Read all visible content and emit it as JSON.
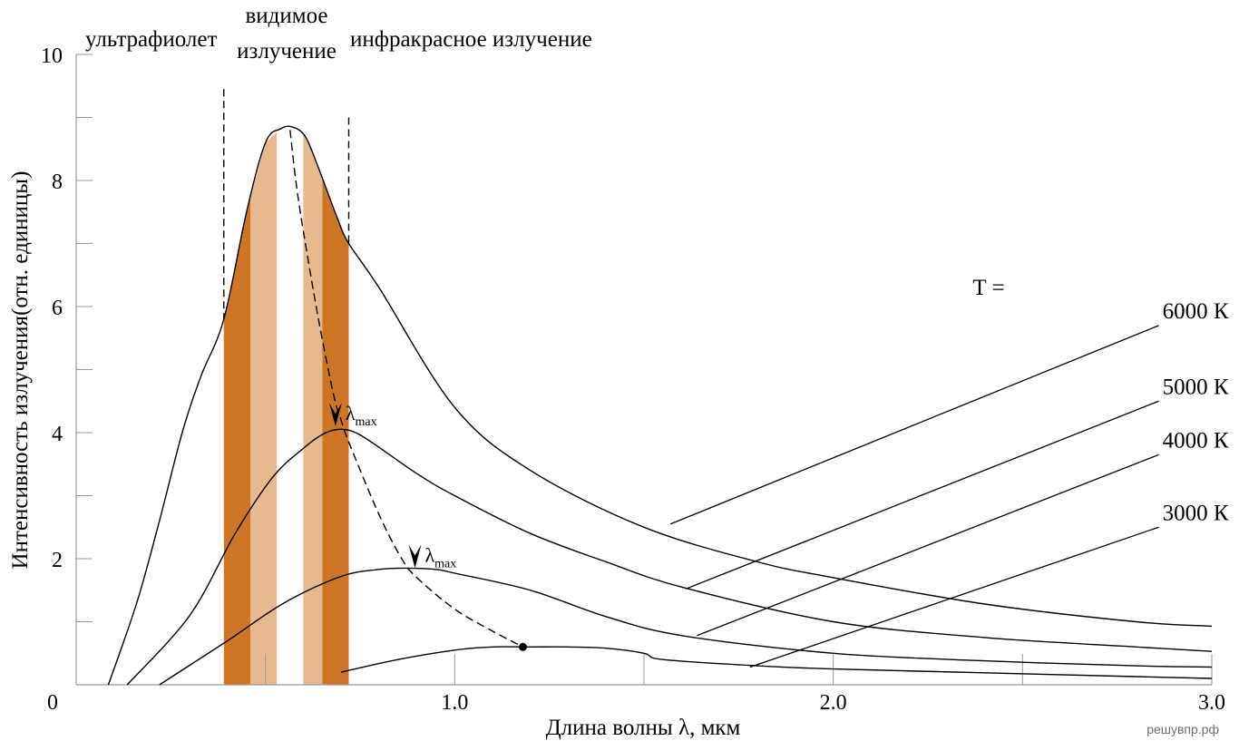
{
  "chart_data": {
    "type": "line",
    "title": "",
    "xlabel": "Длина волны λ, мкм",
    "ylabel": "Интенсивность излучения(отн. единицы)",
    "xlim": [
      0,
      3.0
    ],
    "ylim": [
      0,
      10
    ],
    "x_ticks": [
      "0",
      "1.0",
      "2.0",
      "3.0"
    ],
    "y_ticks": [
      "2",
      "4",
      "6",
      "8",
      "10"
    ],
    "grid": false,
    "regions": [
      {
        "label": "ультрафиолет",
        "from": 0.0,
        "to": 0.39
      },
      {
        "label_line1": "видимое",
        "label_line2": "излучение",
        "from": 0.39,
        "to": 0.72
      },
      {
        "label": "инфракрасное излучение",
        "from": 0.72,
        "to": 3.0
      }
    ],
    "visible_bands": [
      {
        "from": 0.39,
        "to": 0.46,
        "color": "#cd7726"
      },
      {
        "from": 0.46,
        "to": 0.53,
        "color": "#e6b98e"
      },
      {
        "from": 0.53,
        "to": 0.6,
        "color": "#ffffff"
      },
      {
        "from": 0.6,
        "to": 0.65,
        "color": "#e6b98e"
      },
      {
        "from": 0.65,
        "to": 0.72,
        "color": "#cd7726"
      }
    ],
    "legend_header": "T =",
    "series": [
      {
        "name": "6000 К",
        "x": [
          0.085,
          0.16,
          0.22,
          0.28,
          0.33,
          0.39,
          0.45,
          0.5,
          0.54,
          0.57,
          0.605,
          0.64,
          0.69,
          0.72,
          0.8,
          1.0,
          1.2,
          1.5,
          1.8,
          2.0,
          2.4,
          2.8,
          3.0
        ],
        "y": [
          0.0,
          1.3,
          2.6,
          4.0,
          4.9,
          5.8,
          7.5,
          8.6,
          8.82,
          8.85,
          8.7,
          8.2,
          7.4,
          7.0,
          6.3,
          4.4,
          3.4,
          2.5,
          1.95,
          1.7,
          1.28,
          1.0,
          0.93
        ]
      },
      {
        "name": "5000 К",
        "x": [
          0.135,
          0.3,
          0.42,
          0.52,
          0.6,
          0.65,
          0.69,
          0.73,
          0.78,
          0.9,
          1.0,
          1.2,
          1.4,
          1.6,
          2.0,
          2.4,
          2.8,
          3.0
        ],
        "y": [
          0.0,
          1.1,
          2.4,
          3.3,
          3.75,
          3.97,
          4.05,
          4.02,
          3.85,
          3.35,
          3.0,
          2.4,
          1.95,
          1.55,
          1.0,
          0.75,
          0.6,
          0.53
        ]
      },
      {
        "name": "4000 К",
        "x": [
          0.22,
          0.4,
          0.55,
          0.7,
          0.8,
          0.87,
          0.95,
          1.0,
          1.2,
          1.4,
          1.6,
          2.0,
          2.4,
          2.8,
          3.0
        ],
        "y": [
          0.0,
          0.7,
          1.3,
          1.72,
          1.83,
          1.85,
          1.83,
          1.77,
          1.5,
          1.08,
          0.78,
          0.5,
          0.38,
          0.3,
          0.28
        ]
      },
      {
        "name": "3000 К",
        "x": [
          0.7,
          0.85,
          1.0,
          1.1,
          1.2,
          1.3,
          1.4,
          1.5,
          1.55,
          1.8,
          2.0,
          2.4,
          2.8,
          3.0
        ],
        "y": [
          0.2,
          0.4,
          0.55,
          0.6,
          0.6,
          0.6,
          0.58,
          0.5,
          0.4,
          0.3,
          0.25,
          0.19,
          0.13,
          0.1
        ]
      }
    ],
    "wien_peak_curve": {
      "x": [
        0.565,
        0.58,
        0.6,
        0.64,
        0.68,
        0.7,
        0.72,
        0.8,
        0.86,
        0.9,
        1.0,
        1.1,
        1.18
      ],
      "y": [
        8.8,
        8.0,
        7.2,
        5.8,
        4.6,
        4.2,
        3.85,
        2.7,
        2.0,
        1.7,
        1.2,
        0.85,
        0.6
      ]
    },
    "peak_labels": [
      {
        "symbol": "λ",
        "subscript": "max",
        "x": 0.685,
        "y": 4.1
      },
      {
        "symbol": "λ",
        "subscript": "max",
        "x": 0.895,
        "y": 1.85
      }
    ],
    "endpoint_marker": {
      "x": 1.18,
      "y": 0.6
    },
    "boundary_lines": [
      {
        "x": 0.39,
        "y_top": 9.45
      },
      {
        "x": 0.72,
        "y_top": 9.0
      }
    ],
    "series_leaders": [
      {
        "label": "6000 К",
        "x": 1.57,
        "y": 2.55,
        "lx": 2.86,
        "ly": 5.7
      },
      {
        "label": "5000 К",
        "x": 1.61,
        "y": 1.52,
        "lx": 2.86,
        "ly": 4.5
      },
      {
        "label": "4000 К",
        "x": 1.64,
        "y": 0.78,
        "lx": 2.86,
        "ly": 3.65
      },
      {
        "label": "3000 К",
        "x": 1.78,
        "y": 0.28,
        "lx": 2.86,
        "ly": 2.5
      }
    ],
    "watermark": "решувпр.рф"
  }
}
